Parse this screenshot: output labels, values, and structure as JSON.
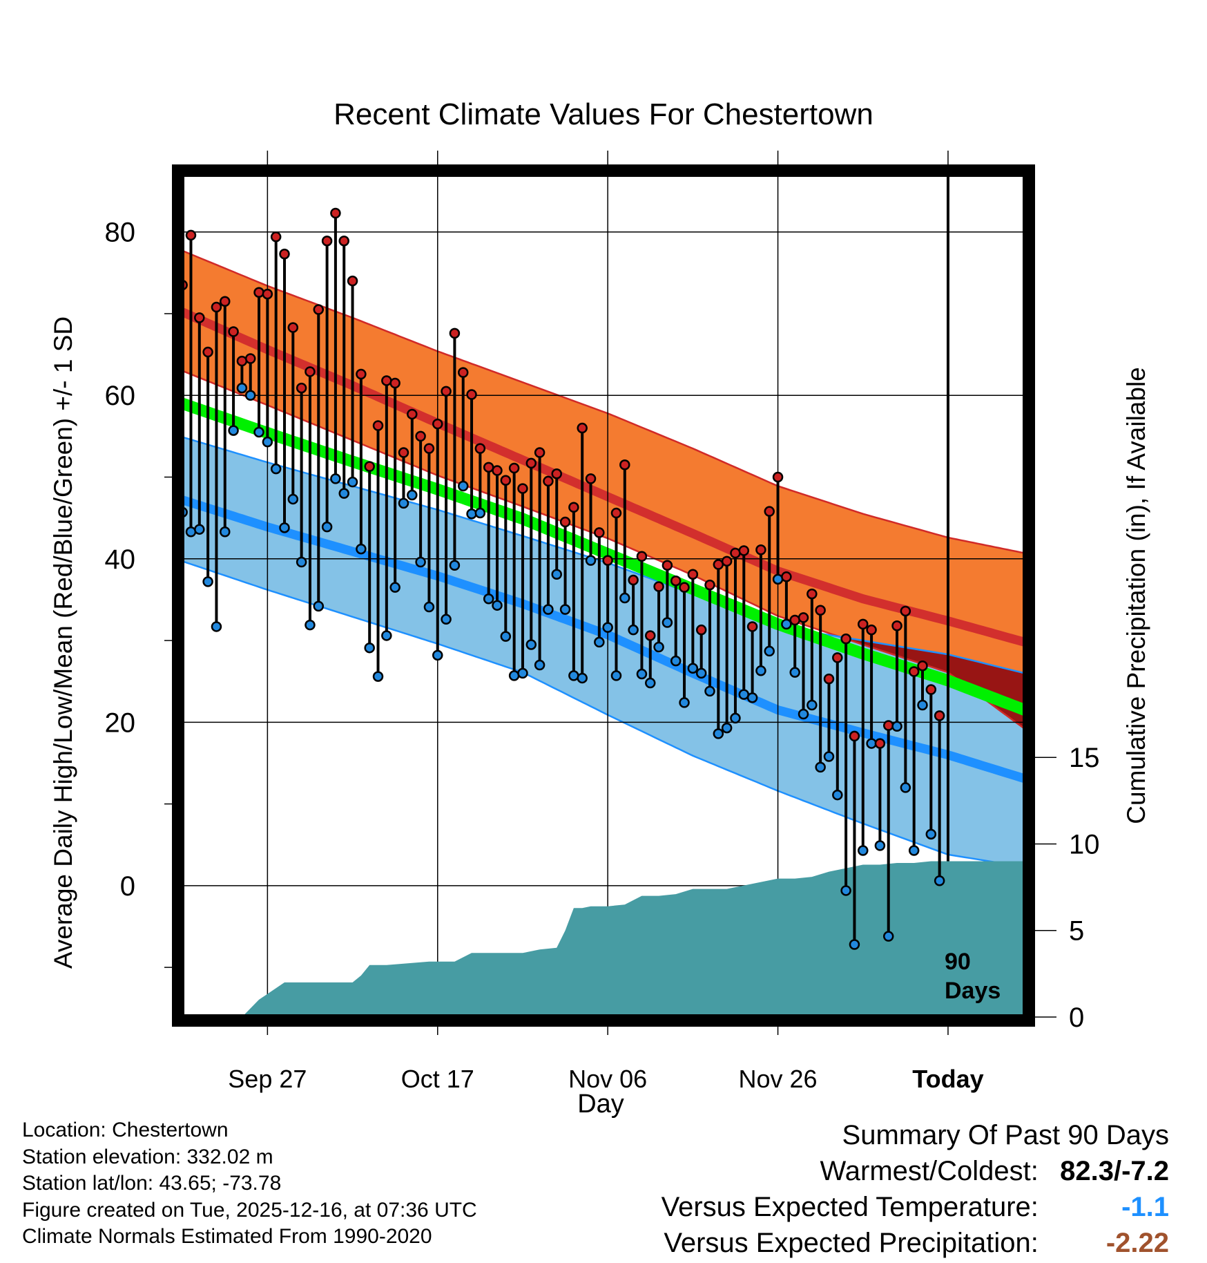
{
  "chart_data": {
    "type": "line",
    "title": "Recent Climate Values For Chestertown",
    "xlabel": "Day",
    "ylabel": "Average Daily High/Low/Mean (Red/Blue/Green) +/- 1 SD",
    "y2label": "Cumulative Precipitation (in), If Available",
    "ylim": [
      -16.5,
      87.5
    ],
    "yticks": [
      0,
      20,
      40,
      60,
      80
    ],
    "y2lim": [
      -0.2,
      48.9
    ],
    "y2ticks": [
      0,
      5,
      10,
      15
    ],
    "x_day_range": [
      -90.5,
      9.5
    ],
    "x_tick_days": [
      -80,
      -60,
      -40,
      -20,
      0
    ],
    "xtick_labels": [
      "Sep 27",
      "Oct 17",
      "Nov 06",
      "Nov 26",
      "Today"
    ],
    "today_marker_label": [
      "90",
      "Days"
    ],
    "normals_days": [
      -90,
      -80,
      -70,
      -60,
      -50,
      -40,
      -30,
      -20,
      -10,
      0,
      9
    ],
    "normal_high": [
      70.2,
      65.6,
      61.2,
      56.6,
      52.1,
      47.6,
      43.1,
      38.5,
      35.1,
      32.4,
      29.8
    ],
    "normal_high_upper": [
      77.7,
      73.4,
      69.5,
      65.4,
      61.6,
      57.8,
      53.5,
      48.9,
      45.5,
      42.6,
      40.7
    ],
    "normal_high_lower": [
      63.0,
      58.8,
      54.5,
      50.2,
      46.4,
      42.5,
      38.0,
      33.0,
      29.5,
      26.1,
      19.2
    ],
    "normal_mean": [
      59.0,
      55.4,
      51.9,
      48.5,
      44.9,
      40.6,
      36.3,
      32.0,
      28.4,
      25.1,
      21.5
    ],
    "normal_low": [
      47.2,
      43.9,
      40.9,
      37.9,
      34.5,
      30.7,
      26.0,
      21.5,
      18.7,
      16.0,
      13.1
    ],
    "normal_low_upper": [
      54.9,
      51.8,
      48.9,
      46.0,
      42.8,
      39.5,
      35.7,
      31.7,
      30.0,
      28.3,
      26.0
    ],
    "normal_low_lower": [
      39.7,
      36.2,
      32.9,
      29.6,
      26.1,
      20.9,
      15.9,
      11.6,
      7.6,
      3.8,
      2.3
    ],
    "daily_high": [
      73.5,
      79.6,
      69.5,
      65.3,
      70.8,
      71.5,
      67.8,
      64.2,
      64.5,
      72.6,
      72.4,
      79.4,
      77.3,
      68.3,
      60.9,
      62.9,
      70.5,
      78.9,
      82.3,
      78.9,
      74.0,
      62.6,
      51.3,
      56.3,
      61.8,
      61.5,
      53.0,
      57.7,
      55.0,
      53.5,
      56.5,
      60.5,
      67.6,
      62.8,
      60.1,
      53.5,
      51.2,
      50.8,
      49.6,
      51.1,
      48.6,
      51.7,
      53.0,
      49.5,
      50.4,
      44.5,
      46.3,
      56.0,
      49.8,
      43.2,
      39.8,
      45.6,
      51.5,
      37.4,
      40.3,
      30.6,
      36.6,
      39.2,
      37.3,
      36.5,
      38.1,
      31.3,
      36.8,
      39.3,
      39.7,
      40.7,
      41.0,
      31.7,
      41.1,
      45.8,
      50.0,
      37.8,
      32.5,
      32.8,
      35.7,
      33.7,
      25.3,
      27.9,
      30.2,
      18.3,
      32.0,
      31.3,
      17.4,
      19.6,
      31.8,
      33.6,
      26.2,
      26.9,
      24.0,
      20.8
    ],
    "daily_low": [
      45.7,
      43.3,
      43.6,
      37.2,
      31.7,
      43.3,
      55.7,
      60.9,
      60.0,
      55.5,
      54.3,
      51.0,
      43.8,
      47.3,
      39.6,
      31.9,
      34.2,
      43.9,
      49.8,
      48.0,
      49.4,
      41.2,
      29.1,
      25.6,
      30.6,
      36.5,
      46.8,
      47.8,
      39.6,
      34.1,
      28.2,
      32.6,
      39.2,
      48.9,
      45.5,
      45.6,
      35.1,
      34.3,
      30.5,
      25.7,
      26.0,
      29.5,
      27.0,
      33.8,
      38.1,
      33.8,
      25.7,
      25.4,
      39.8,
      29.8,
      31.6,
      25.7,
      35.2,
      31.3,
      25.9,
      24.8,
      29.2,
      32.2,
      27.5,
      22.4,
      26.6,
      26.0,
      23.8,
      18.6,
      19.3,
      20.5,
      23.4,
      23.0,
      26.3,
      28.7,
      37.5,
      32.0,
      26.1,
      21.0,
      22.1,
      14.5,
      15.8,
      11.1,
      -0.6,
      -7.2,
      4.3,
      17.4,
      4.9,
      -6.2,
      19.5,
      12.0,
      4.3,
      22.1,
      6.3,
      0.6
    ],
    "precip_days": [
      -83,
      -81,
      -78,
      -75,
      -73,
      -71,
      -70,
      -69,
      -68,
      -66,
      -61,
      -58,
      -56,
      -54,
      -52,
      -50,
      -48,
      -46,
      -45,
      -44,
      -43,
      -42,
      -41,
      -40,
      -38,
      -36,
      -34,
      -32,
      -30,
      -28,
      -26,
      -24,
      -22,
      -20,
      -18,
      -16,
      -14,
      -12,
      -10,
      -8,
      -6,
      -4,
      -2,
      0,
      9
    ],
    "cumulative_precip": [
      0.0,
      1.0,
      2.0,
      2.0,
      2.0,
      2.0,
      2.0,
      2.4,
      3.0,
      3.0,
      3.2,
      3.2,
      3.7,
      3.7,
      3.7,
      3.7,
      3.9,
      4.0,
      5.0,
      6.3,
      6.3,
      6.4,
      6.4,
      6.4,
      6.5,
      7.0,
      7.0,
      7.1,
      7.4,
      7.4,
      7.4,
      7.6,
      7.8,
      8.0,
      8.0,
      8.1,
      8.4,
      8.6,
      8.8,
      8.8,
      8.9,
      8.9,
      9.0,
      9.0,
      9.0
    ]
  },
  "info": {
    "location": "Location: Chestertown",
    "elevation": "Station elevation: 332.02 m",
    "latlon": "Station lat/lon: 43.65; -73.78",
    "created": "Figure created on Tue, 2025-12-16, at 07:36 UTC",
    "normals": "Climate Normals Estimated From 1990-2020"
  },
  "summary": {
    "title": "Summary Of Past 90 Days",
    "warm_cold_label": "Warmest/Coldest:",
    "warm_cold_value": "82.3/-7.2",
    "temp_label": "Versus Expected Temperature:",
    "temp_value": "-1.1",
    "precip_label": "Versus Expected Precipitation:",
    "precip_value": "-2.22"
  },
  "colors": {
    "high_band": "#F47B30",
    "high_band_edge": "#D02A28",
    "high_line": "#D22F2D",
    "high_warm_excess": "#981514",
    "low_band": "#84C2E7",
    "low_band_edge": "#1E90FF",
    "low_line": "#1E90FF",
    "mean_line": "#00F000",
    "precip_fill": "#479CA3",
    "high_dot": "#CC2222",
    "low_dot": "#2288DD",
    "temp_value": "#1E90FF",
    "precip_value": "#A0522D"
  }
}
